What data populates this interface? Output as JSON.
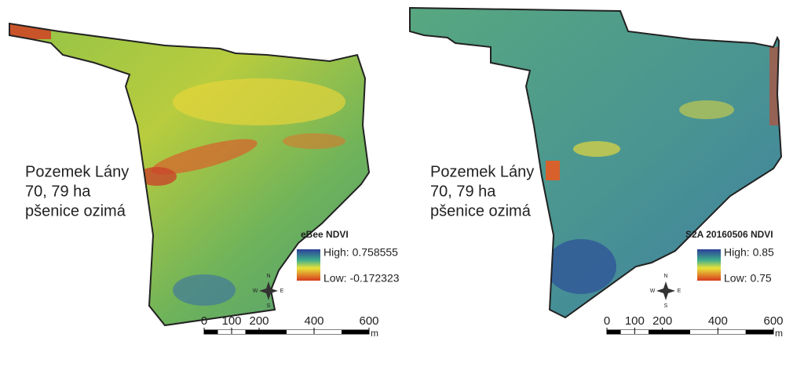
{
  "panels": [
    {
      "label": [
        "Pozemek Lány",
        "70, 79 ha",
        "pšenice ozimá"
      ],
      "legend": {
        "title": "eBee NDVI",
        "high": "High: 0.758555",
        "low": "Low: -0.172323"
      },
      "scale": {
        "ticks": [
          0,
          100,
          200,
          400,
          600
        ],
        "unit": "m"
      },
      "compass": {
        "n": "N",
        "e": "E",
        "s": "S",
        "w": "W"
      }
    },
    {
      "label": [
        "Pozemek Lány",
        "70, 79 ha",
        "pšenice ozimá"
      ],
      "legend": {
        "title": "S2A 20160506 NDVI",
        "high": "High: 0.85",
        "low": "Low: 0.75"
      },
      "scale": {
        "ticks": [
          0,
          100,
          200,
          400,
          600
        ],
        "unit": "m"
      },
      "compass": {
        "n": "N",
        "e": "E",
        "s": "S",
        "w": "W"
      }
    }
  ]
}
